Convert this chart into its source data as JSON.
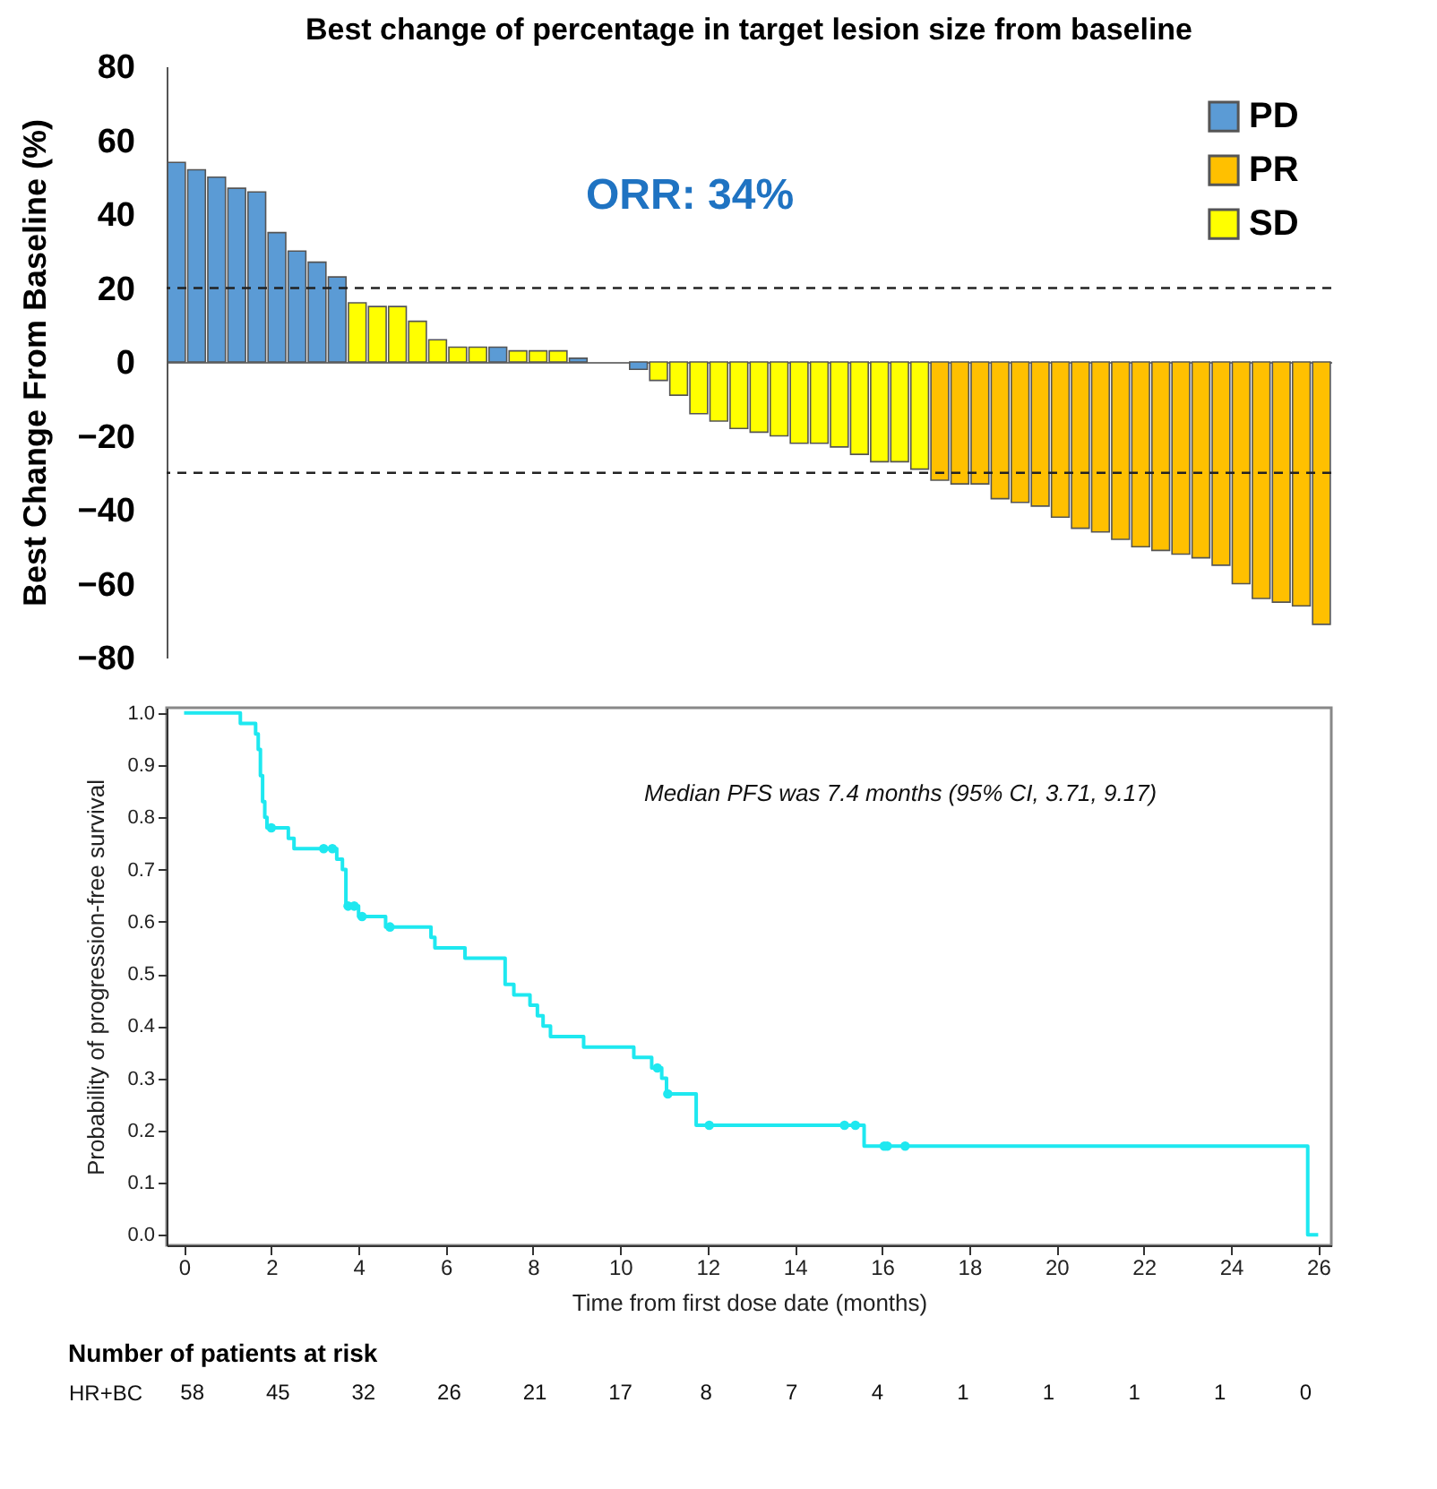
{
  "chart_data": [
    {
      "type": "bar",
      "title": "Best change of percentage in target lesion size from baseline",
      "ylabel": "Best Change  From Baseline (%)",
      "legend": "top right",
      "categories": [
        null,
        null,
        null,
        null,
        null,
        null,
        null,
        null,
        null,
        null,
        null,
        null,
        null,
        null,
        null,
        null,
        null,
        null,
        null,
        null,
        null,
        null,
        null,
        null,
        null,
        null,
        null,
        null,
        null,
        null,
        null,
        null,
        null,
        null,
        null,
        null,
        null,
        null,
        null,
        null,
        null,
        null,
        null,
        null,
        null,
        null,
        null,
        null,
        null,
        null,
        null,
        null,
        null,
        null,
        null,
        null,
        null,
        null
      ],
      "series": [
        {
          "name": "PD",
          "color": "#5b9bd5",
          "values": [
            54,
            52,
            50,
            47,
            46,
            35,
            30,
            27,
            23,
            null,
            null,
            null,
            null,
            null,
            null,
            null,
            4,
            null,
            null,
            null,
            1,
            null,
            null,
            -2,
            null,
            null,
            null,
            null,
            null,
            null,
            null,
            null,
            null,
            null,
            null,
            null,
            null,
            null,
            null,
            null,
            null,
            null,
            null,
            null,
            null,
            null,
            null,
            null,
            null,
            null,
            null,
            null,
            null,
            null,
            null,
            null,
            null,
            null
          ]
        },
        {
          "name": "PR",
          "color": "#ffc000",
          "values": [
            null,
            null,
            null,
            null,
            null,
            null,
            null,
            null,
            null,
            null,
            null,
            null,
            null,
            null,
            null,
            null,
            null,
            null,
            null,
            null,
            null,
            null,
            null,
            null,
            null,
            null,
            null,
            null,
            null,
            null,
            null,
            null,
            null,
            null,
            null,
            null,
            null,
            null,
            -32,
            -33,
            -33,
            -37,
            -38,
            -39,
            -42,
            -45,
            -46,
            -48,
            -50,
            -51,
            -52,
            -53,
            -55,
            -60,
            -64,
            -65,
            -66,
            -71
          ]
        },
        {
          "name": "SD",
          "color": "#ffff00",
          "values": [
            null,
            null,
            null,
            null,
            null,
            null,
            null,
            null,
            null,
            16,
            15,
            15,
            11,
            6,
            4,
            4,
            null,
            3,
            3,
            3,
            null,
            null,
            null,
            null,
            -5,
            -9,
            -14,
            -16,
            -18,
            -19,
            -20,
            -22,
            -22,
            -23,
            -25,
            -27,
            -27,
            -29,
            null,
            null,
            null,
            null,
            null,
            null,
            null,
            null,
            null,
            null,
            null,
            null,
            null,
            null,
            null,
            null,
            null,
            null,
            null,
            null
          ]
        }
      ],
      "ylim": [
        -80,
        80
      ],
      "yticks": [
        -80,
        -60,
        -40,
        -20,
        0,
        20,
        40,
        60,
        80
      ],
      "ref_lines": [
        {
          "axis": "y",
          "value": 20,
          "line_style": "dashed"
        },
        {
          "axis": "y",
          "value": -30,
          "line_style": "dashed"
        }
      ],
      "annotations": [
        "ORR: 34%"
      ]
    },
    {
      "type": "step",
      "xlabel": "Time from first dose date (months)",
      "ylabel": "Probability of progression-free survival",
      "series": [
        {
          "color": "#1ee8f0",
          "x": [
            0,
            1.29,
            1.64,
            1.7,
            1.75,
            1.8,
            1.85,
            1.9,
            2.39,
            2.52,
            3.5,
            3.63,
            3.71,
            4.0,
            4.62,
            5.66,
            5.75,
            6.44,
            7.36,
            7.56,
            7.93,
            8.1,
            8.23,
            8.4,
            9.16,
            10.31,
            10.72,
            10.95,
            11.06,
            11.74,
            15.59,
            25.76,
            26.0
          ],
          "values": [
            1.0,
            0.98,
            0.96,
            0.93,
            0.88,
            0.83,
            0.8,
            0.78,
            0.76,
            0.74,
            0.72,
            0.7,
            0.63,
            0.61,
            0.59,
            0.57,
            0.55,
            0.53,
            0.48,
            0.46,
            0.44,
            0.42,
            0.4,
            0.38,
            0.36,
            0.34,
            0.32,
            0.3,
            0.27,
            0.21,
            0.17,
            0,
            0
          ]
        },
        {
          "type": "scatter",
          "marker": "circle",
          "color": "#1ee8f0",
          "x": [
            2.0,
            3.2,
            3.4,
            3.76,
            3.9,
            4.08,
            4.72,
            10.85,
            11.09,
            12.04,
            15.14,
            15.39,
            16.05,
            16.12,
            16.53
          ],
          "values": [
            0.78,
            0.74,
            0.74,
            0.63,
            0.63,
            0.61,
            0.59,
            0.32,
            0.27,
            0.21,
            0.21,
            0.21,
            0.17,
            0.17,
            0.17
          ]
        }
      ],
      "xlim": [
        -0.4,
        26.3
      ],
      "xticks": [
        0,
        2,
        4,
        6,
        8,
        10,
        12,
        14,
        16,
        18,
        20,
        22,
        24,
        26
      ],
      "ylim": [
        -0.02,
        1.01
      ],
      "yticks": [
        {
          "value": 0,
          "label": "0.0"
        },
        0.1,
        0.2,
        0.3,
        0.4,
        0.5,
        0.6,
        0.7,
        0.8,
        0.9,
        {
          "value": 1,
          "label": "1.0"
        }
      ],
      "annotations": [
        "Median PFS was 7.4 months (95% CI, 3.71, 9.17)"
      ]
    },
    {
      "type": "other",
      "title": "Number of patients at risk",
      "data_labels": true,
      "categories": [
        null,
        null,
        null,
        null,
        null,
        null,
        null,
        null,
        null,
        null,
        null,
        null,
        null,
        null
      ],
      "series": [
        {
          "name": "HR+BC",
          "values": [
            58,
            45,
            32,
            26,
            21,
            17,
            8,
            7,
            4,
            1,
            1,
            1,
            1,
            0
          ]
        }
      ]
    }
  ]
}
